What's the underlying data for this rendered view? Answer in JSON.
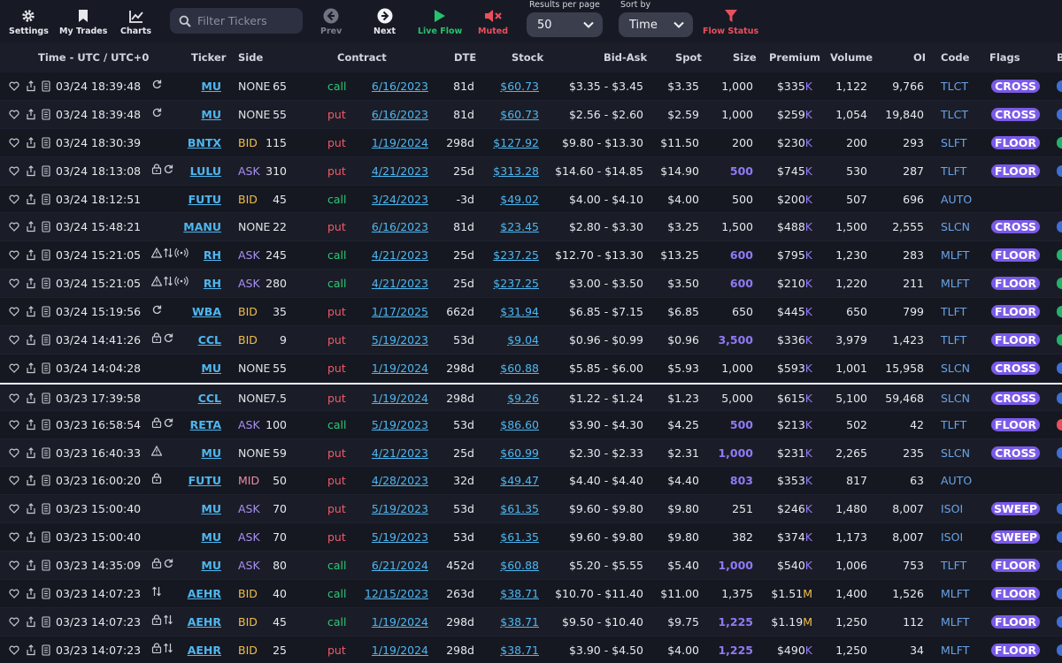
{
  "toolbar": {
    "settings_label": "Settings",
    "my_trades_label": "My Trades",
    "charts_label": "Charts",
    "search_placeholder": "Filter Tickers",
    "prev_label": "Prev",
    "next_label": "Next",
    "live_flow_label": "Live Flow",
    "muted_label": "Muted",
    "results_per_page_label": "Results per page",
    "results_per_page_value": "50",
    "sort_by_label": "Sort by",
    "sort_by_value": "Time",
    "flow_status_label": "Flow Status"
  },
  "columns": {
    "time": "Time - UTC / UTC+0",
    "ticker": "Ticker",
    "side": "Side",
    "contract": "Contract",
    "dte": "DTE",
    "stock": "Stock",
    "bid_ask": "Bid-Ask",
    "spot": "Spot",
    "size": "Size",
    "premium": "Premium",
    "volume": "Volume",
    "oi": "OI",
    "code": "Code",
    "flags": "Flags",
    "extra": "B"
  },
  "colors": {
    "accent_purple": "#7a5ae8",
    "call_green": "#2ec776",
    "put_red": "#ef5b6a",
    "link_blue": "#4fb6f0",
    "bid_yellow": "#f4bd4a",
    "ask_purple": "#a98ff2"
  },
  "rows": [
    {
      "time": "03/24 18:39:48",
      "icons": [
        "refresh-icon"
      ],
      "ticker": "MU",
      "side": "NONE",
      "strike": "65",
      "type": "call",
      "expiry": "6/16/2023",
      "dte": "81d",
      "stock": "$60.73",
      "bid_ask": "$3.35 - $3.45",
      "spot": "$3.35",
      "size": "1,000",
      "size_hi": false,
      "premium": "$335",
      "premium_suffix": "K",
      "volume": "1,122",
      "oi": "9,766",
      "code": "TLCT",
      "flag": "CROSS",
      "dot": "#3f6fd6"
    },
    {
      "time": "03/24 18:39:48",
      "icons": [
        "refresh-icon"
      ],
      "ticker": "MU",
      "side": "NONE",
      "strike": "55",
      "type": "put",
      "expiry": "6/16/2023",
      "dte": "81d",
      "stock": "$60.73",
      "bid_ask": "$2.56 - $2.60",
      "spot": "$2.59",
      "size": "1,000",
      "size_hi": false,
      "premium": "$259",
      "premium_suffix": "K",
      "volume": "1,054",
      "oi": "19,840",
      "code": "TLCT",
      "flag": "CROSS",
      "dot": "#3f6fd6"
    },
    {
      "time": "03/24 18:30:39",
      "icons": [],
      "ticker": "BNTX",
      "side": "BID",
      "strike": "115",
      "type": "put",
      "expiry": "1/19/2024",
      "dte": "298d",
      "stock": "$127.92",
      "bid_ask": "$9.80 - $13.30",
      "spot": "$11.50",
      "size": "200",
      "size_hi": false,
      "premium": "$230",
      "premium_suffix": "K",
      "volume": "200",
      "oi": "293",
      "code": "SLFT",
      "flag": "FLOOR",
      "dot": "#23b26a"
    },
    {
      "time": "03/24 18:13:08",
      "icons": [
        "lock-icon",
        "refresh-icon"
      ],
      "ticker": "LULU",
      "side": "ASK",
      "strike": "310",
      "type": "put",
      "expiry": "4/21/2023",
      "dte": "25d",
      "stock": "$313.28",
      "bid_ask": "$14.60 - $14.85",
      "spot": "$14.90",
      "size": "500",
      "size_hi": true,
      "premium": "$745",
      "premium_suffix": "K",
      "volume": "530",
      "oi": "287",
      "code": "TLFT",
      "flag": "FLOOR",
      "dot": "#3f6fd6"
    },
    {
      "time": "03/24 18:12:51",
      "icons": [],
      "ticker": "FUTU",
      "side": "BID",
      "strike": "45",
      "type": "call",
      "expiry": "3/24/2023",
      "dte": "-3d",
      "stock": "$49.02",
      "bid_ask": "$4.00 - $4.10",
      "spot": "$4.00",
      "size": "500",
      "size_hi": false,
      "premium": "$200",
      "premium_suffix": "K",
      "volume": "507",
      "oi": "696",
      "code": "AUTO",
      "flag": "",
      "dot": ""
    },
    {
      "time": "03/24 15:48:21",
      "icons": [],
      "ticker": "MANU",
      "side": "NONE",
      "strike": "22",
      "type": "put",
      "expiry": "6/16/2023",
      "dte": "81d",
      "stock": "$23.45",
      "bid_ask": "$2.80 - $3.30",
      "spot": "$3.25",
      "size": "1,500",
      "size_hi": false,
      "premium": "$488",
      "premium_suffix": "K",
      "volume": "1,500",
      "oi": "2,555",
      "code": "SLCN",
      "flag": "CROSS",
      "dot": "#3f6fd6"
    },
    {
      "time": "03/24 15:21:05",
      "icons": [
        "warning-icon",
        "swap-icon",
        "broadcast-icon"
      ],
      "ticker": "RH",
      "side": "ASK",
      "strike": "245",
      "type": "call",
      "expiry": "4/21/2023",
      "dte": "25d",
      "stock": "$237.25",
      "bid_ask": "$12.70 - $13.30",
      "spot": "$13.25",
      "size": "600",
      "size_hi": true,
      "premium": "$795",
      "premium_suffix": "K",
      "volume": "1,230",
      "oi": "283",
      "code": "MLFT",
      "flag": "FLOOR",
      "dot": "#23b26a"
    },
    {
      "time": "03/24 15:21:05",
      "icons": [
        "warning-icon",
        "swap-icon",
        "broadcast-icon"
      ],
      "ticker": "RH",
      "side": "ASK",
      "strike": "280",
      "type": "call",
      "expiry": "4/21/2023",
      "dte": "25d",
      "stock": "$237.25",
      "bid_ask": "$3.00 - $3.50",
      "spot": "$3.50",
      "size": "600",
      "size_hi": true,
      "premium": "$210",
      "premium_suffix": "K",
      "volume": "1,220",
      "oi": "211",
      "code": "MLFT",
      "flag": "FLOOR",
      "dot": "#23b26a"
    },
    {
      "time": "03/24 15:19:56",
      "icons": [
        "refresh-icon"
      ],
      "ticker": "WBA",
      "side": "BID",
      "strike": "35",
      "type": "put",
      "expiry": "1/17/2025",
      "dte": "662d",
      "stock": "$31.94",
      "bid_ask": "$6.85 - $7.15",
      "spot": "$6.85",
      "size": "650",
      "size_hi": false,
      "premium": "$445",
      "premium_suffix": "K",
      "volume": "650",
      "oi": "799",
      "code": "TLFT",
      "flag": "FLOOR",
      "dot": "#23b26a"
    },
    {
      "time": "03/24 14:41:26",
      "icons": [
        "lock-icon",
        "refresh-icon"
      ],
      "ticker": "CCL",
      "side": "BID",
      "strike": "9",
      "type": "put",
      "expiry": "5/19/2023",
      "dte": "53d",
      "stock": "$9.04",
      "bid_ask": "$0.96 - $0.99",
      "spot": "$0.96",
      "size": "3,500",
      "size_hi": true,
      "premium": "$336",
      "premium_suffix": "K",
      "volume": "3,979",
      "oi": "1,423",
      "code": "TLFT",
      "flag": "FLOOR",
      "dot": "#23b26a"
    },
    {
      "time": "03/24 14:04:28",
      "icons": [],
      "ticker": "MU",
      "side": "NONE",
      "strike": "55",
      "type": "put",
      "expiry": "1/19/2024",
      "dte": "298d",
      "stock": "$60.88",
      "bid_ask": "$5.85 - $6.00",
      "spot": "$5.93",
      "size": "1,000",
      "size_hi": false,
      "premium": "$593",
      "premium_suffix": "K",
      "volume": "1,001",
      "oi": "15,958",
      "code": "SLCN",
      "flag": "CROSS",
      "dot": "#3f6fd6"
    },
    {
      "time": "03/23 17:39:58",
      "icons": [],
      "ticker": "CCL",
      "side": "NONE",
      "strike": "7.5",
      "type": "put",
      "expiry": "1/19/2024",
      "dte": "298d",
      "stock": "$9.26",
      "bid_ask": "$1.22 - $1.24",
      "spot": "$1.23",
      "size": "5,000",
      "size_hi": false,
      "premium": "$615",
      "premium_suffix": "K",
      "volume": "5,100",
      "oi": "59,468",
      "code": "SLCN",
      "flag": "CROSS",
      "dot": "#3f6fd6",
      "sep": true
    },
    {
      "time": "03/23 16:58:54",
      "icons": [
        "lock-icon",
        "refresh-icon"
      ],
      "ticker": "RETA",
      "side": "ASK",
      "strike": "100",
      "type": "call",
      "expiry": "5/19/2023",
      "dte": "53d",
      "stock": "$86.60",
      "bid_ask": "$3.90 - $4.30",
      "spot": "$4.25",
      "size": "500",
      "size_hi": true,
      "premium": "$213",
      "premium_suffix": "K",
      "volume": "502",
      "oi": "42",
      "code": "TLFT",
      "flag": "FLOOR",
      "dot": "#ea4f5d"
    },
    {
      "time": "03/23 16:40:33",
      "icons": [
        "warning-icon"
      ],
      "ticker": "MU",
      "side": "NONE",
      "strike": "59",
      "type": "put",
      "expiry": "4/21/2023",
      "dte": "25d",
      "stock": "$60.99",
      "bid_ask": "$2.30 - $2.33",
      "spot": "$2.31",
      "size": "1,000",
      "size_hi": true,
      "premium": "$231",
      "premium_suffix": "K",
      "volume": "2,265",
      "oi": "235",
      "code": "SLCN",
      "flag": "CROSS",
      "dot": "#3f6fd6"
    },
    {
      "time": "03/23 16:00:20",
      "icons": [
        "lock-icon"
      ],
      "ticker": "FUTU",
      "side": "MID",
      "strike": "50",
      "type": "put",
      "expiry": "4/28/2023",
      "dte": "32d",
      "stock": "$49.47",
      "bid_ask": "$4.40 - $4.40",
      "spot": "$4.40",
      "size": "803",
      "size_hi": true,
      "premium": "$353",
      "premium_suffix": "K",
      "volume": "817",
      "oi": "63",
      "code": "AUTO",
      "flag": "",
      "dot": ""
    },
    {
      "time": "03/23 15:00:40",
      "icons": [],
      "ticker": "MU",
      "side": "ASK",
      "strike": "70",
      "type": "put",
      "expiry": "5/19/2023",
      "dte": "53d",
      "stock": "$61.35",
      "bid_ask": "$9.60 - $9.80",
      "spot": "$9.80",
      "size": "251",
      "size_hi": false,
      "premium": "$246",
      "premium_suffix": "K",
      "volume": "1,480",
      "oi": "8,007",
      "code": "ISOI",
      "flag": "SWEEP",
      "dot": "#3f6fd6"
    },
    {
      "time": "03/23 15:00:40",
      "icons": [],
      "ticker": "MU",
      "side": "ASK",
      "strike": "70",
      "type": "put",
      "expiry": "5/19/2023",
      "dte": "53d",
      "stock": "$61.35",
      "bid_ask": "$9.60 - $9.80",
      "spot": "$9.80",
      "size": "382",
      "size_hi": false,
      "premium": "$374",
      "premium_suffix": "K",
      "volume": "1,173",
      "oi": "8,007",
      "code": "ISOI",
      "flag": "SWEEP",
      "dot": "#3f6fd6"
    },
    {
      "time": "03/23 14:35:09",
      "icons": [
        "lock-icon",
        "refresh-icon"
      ],
      "ticker": "MU",
      "side": "ASK",
      "strike": "80",
      "type": "call",
      "expiry": "6/21/2024",
      "dte": "452d",
      "stock": "$60.88",
      "bid_ask": "$5.20 - $5.55",
      "spot": "$5.40",
      "size": "1,000",
      "size_hi": true,
      "premium": "$540",
      "premium_suffix": "K",
      "volume": "1,006",
      "oi": "753",
      "code": "TLFT",
      "flag": "FLOOR",
      "dot": "#3f6fd6"
    },
    {
      "time": "03/23 14:07:23",
      "icons": [
        "swap-icon"
      ],
      "ticker": "AEHR",
      "side": "BID",
      "strike": "40",
      "type": "call",
      "expiry": "12/15/2023",
      "dte": "263d",
      "stock": "$38.71",
      "bid_ask": "$10.70 - $11.40",
      "spot": "$11.00",
      "size": "1,375",
      "size_hi": false,
      "premium": "$1.51",
      "premium_suffix": "M",
      "volume": "1,400",
      "oi": "1,526",
      "code": "MLFT",
      "flag": "FLOOR",
      "dot": "#3f6fd6"
    },
    {
      "time": "03/23 14:07:23",
      "icons": [
        "lock-icon",
        "swap-icon"
      ],
      "ticker": "AEHR",
      "side": "BID",
      "strike": "45",
      "type": "call",
      "expiry": "1/19/2024",
      "dte": "298d",
      "stock": "$38.71",
      "bid_ask": "$9.50 - $10.40",
      "spot": "$9.75",
      "size": "1,225",
      "size_hi": true,
      "premium": "$1.19",
      "premium_suffix": "M",
      "volume": "1,250",
      "oi": "112",
      "code": "MLFT",
      "flag": "FLOOR",
      "dot": "#3f6fd6"
    },
    {
      "time": "03/23 14:07:23",
      "icons": [
        "lock-icon",
        "swap-icon"
      ],
      "ticker": "AEHR",
      "side": "BID",
      "strike": "25",
      "type": "put",
      "expiry": "1/19/2024",
      "dte": "298d",
      "stock": "$38.71",
      "bid_ask": "$3.90 - $4.50",
      "spot": "$4.00",
      "size": "1,225",
      "size_hi": true,
      "premium": "$490",
      "premium_suffix": "K",
      "volume": "1,250",
      "oi": "34",
      "code": "MLFT",
      "flag": "FLOOR",
      "dot": "#3f6fd6"
    }
  ]
}
